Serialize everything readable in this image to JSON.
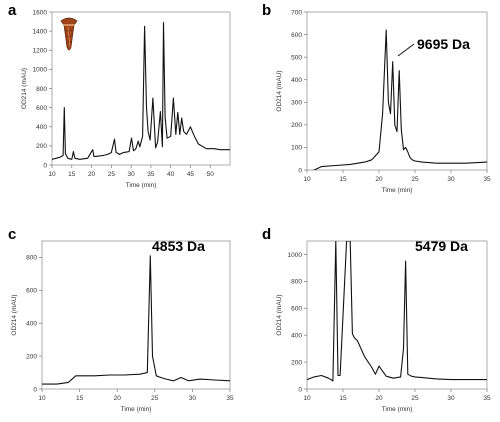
{
  "chart_data": [
    {
      "type": "line",
      "panel": "a",
      "xlabel": "Time (min)",
      "ylabel": "OD214 (mAU)",
      "xlim": [
        10,
        55
      ],
      "ylim": [
        0,
        1600
      ],
      "xticks": [
        "10",
        "15",
        "20",
        "25",
        "30",
        "35",
        "40",
        "45",
        "50"
      ],
      "yticks": [
        "0",
        "200",
        "400",
        "600",
        "800",
        "1000",
        "1200",
        "1400",
        "1600"
      ],
      "annotation": "",
      "inset_image": "cone-snail-shell-icon",
      "series": [
        {
          "x": [
            10,
            12,
            12.8,
            13.1,
            13.4,
            14,
            15,
            15.4,
            15.8,
            17,
            19,
            20.3,
            20.6,
            21,
            23,
            24,
            25,
            25.8,
            26.2,
            26.8,
            27,
            28,
            29.5,
            30.1,
            30.6,
            31.2,
            31.8,
            32.2,
            32.9,
            33.4,
            33.9,
            34.3,
            34.8,
            35.5,
            36.2,
            36.7,
            37.4,
            37.9,
            38.2,
            38.6,
            39.1,
            40,
            40.7,
            41.3,
            41.8,
            42.3,
            42.8,
            43.3,
            44,
            45,
            46,
            47,
            49,
            51,
            52.5,
            55
          ],
          "y": [
            60,
            80,
            100,
            600,
            120,
            70,
            60,
            140,
            70,
            60,
            70,
            160,
            90,
            90,
            100,
            110,
            130,
            270,
            130,
            120,
            110,
            130,
            140,
            280,
            150,
            170,
            250,
            190,
            300,
            1450,
            600,
            350,
            260,
            700,
            180,
            240,
            560,
            190,
            1490,
            500,
            280,
            300,
            700,
            320,
            550,
            320,
            490,
            350,
            320,
            400,
            300,
            220,
            170,
            170,
            160,
            160
          ]
        }
      ]
    },
    {
      "type": "line",
      "panel": "b",
      "xlabel": "Time (min)",
      "ylabel": "OD214 (mAU)",
      "xlim": [
        10,
        35
      ],
      "ylim": [
        0,
        700
      ],
      "xticks": [
        "10",
        "15",
        "20",
        "25",
        "30",
        "35"
      ],
      "yticks": [
        "0",
        "100",
        "200",
        "300",
        "400",
        "500",
        "600",
        "700"
      ],
      "annotation": "9695 Da",
      "series": [
        {
          "x": [
            10,
            11,
            12,
            14,
            16,
            18,
            19,
            20,
            20.5,
            21,
            21.3,
            21.6,
            21.9,
            22.2,
            22.5,
            22.8,
            23.1,
            23.4,
            23.7,
            24,
            24.3,
            24.6,
            25,
            26,
            28,
            30,
            32,
            35
          ],
          "y": [
            -10,
            0,
            15,
            20,
            25,
            35,
            45,
            80,
            250,
            620,
            300,
            250,
            480,
            200,
            170,
            440,
            180,
            90,
            100,
            80,
            55,
            45,
            40,
            35,
            30,
            30,
            30,
            35
          ]
        }
      ]
    },
    {
      "type": "line",
      "panel": "c",
      "xlabel": "Time (min)",
      "ylabel": "OD214 (mAU)",
      "xlim": [
        10,
        35
      ],
      "ylim": [
        0,
        900
      ],
      "xticks": [
        "10",
        "15",
        "20",
        "25",
        "30",
        "35"
      ],
      "yticks": [
        "0",
        "200",
        "400",
        "600",
        "800"
      ],
      "annotation": "4853 Da",
      "series": [
        {
          "x": [
            10,
            12,
            13.5,
            14.5,
            15.5,
            17,
            19,
            21,
            23,
            24,
            24.4,
            24.7,
            25.2,
            25.8,
            26.5,
            27.5,
            28.5,
            29.5,
            31,
            33,
            35
          ],
          "y": [
            30,
            30,
            40,
            80,
            80,
            80,
            85,
            85,
            90,
            100,
            810,
            200,
            80,
            70,
            60,
            50,
            70,
            50,
            60,
            55,
            50
          ]
        }
      ]
    },
    {
      "type": "line",
      "panel": "d",
      "xlabel": "Time (min)",
      "ylabel": "OD214 (mAU)",
      "xlim": [
        10,
        35
      ],
      "ylim": [
        0,
        1100
      ],
      "xticks": [
        "10",
        "15",
        "20",
        "25",
        "30",
        "35"
      ],
      "yticks": [
        "0",
        "200",
        "400",
        "600",
        "800",
        "1000"
      ],
      "annotation": "5479 Da",
      "series": [
        {
          "x": [
            10,
            11,
            12,
            13,
            13.6,
            14,
            14.3,
            14.6,
            15.5,
            16,
            16.3,
            16.6,
            17,
            18,
            19,
            19.5,
            20,
            21,
            22,
            23,
            23.4,
            23.7,
            24,
            24.5,
            25,
            26,
            28,
            30,
            32,
            35
          ],
          "y": [
            70,
            90,
            100,
            80,
            60,
            1100,
            100,
            100,
            1100,
            1100,
            410,
            380,
            360,
            240,
            160,
            110,
            170,
            95,
            80,
            90,
            300,
            950,
            110,
            95,
            90,
            85,
            75,
            70,
            70,
            70
          ]
        }
      ]
    }
  ]
}
